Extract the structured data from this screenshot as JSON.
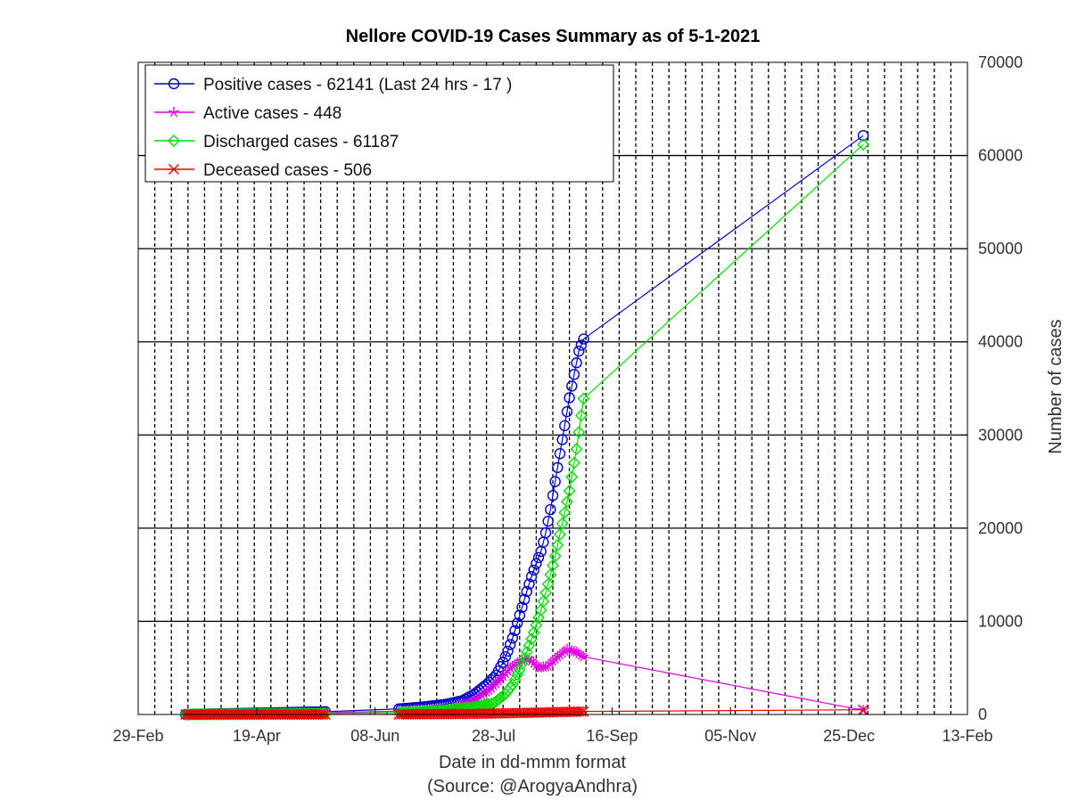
{
  "chart_data": {
    "type": "line",
    "title": "Nellore COVID-19 Cases Summary as of 5-1-2021",
    "xlabel": "Date in dd-mmm format",
    "xlabel2": "(Source: @ArogyaAndhra)",
    "ylabel": "Number of cases",
    "x_ticks": [
      "29-Feb",
      "19-Apr",
      "08-Jun",
      "28-Jul",
      "16-Sep",
      "05-Nov",
      "25-Dec",
      "13-Feb"
    ],
    "y_ticks": [
      "0",
      "10000",
      "20000",
      "30000",
      "40000",
      "50000",
      "60000",
      "70000"
    ],
    "xlim": [
      "2020-02-29",
      "2021-02-13"
    ],
    "ylim": [
      0,
      70000
    ],
    "grid": "on",
    "legend_position": "top-left",
    "series": [
      {
        "name": "Positive cases - 62141 (Last 24 hrs - 17 )",
        "color": "#0000cc",
        "marker": "circle",
        "points": [
          [
            "2020-03-20",
            0
          ],
          [
            "2020-05-18",
            300
          ],
          [
            "2020-06-18",
            600
          ],
          [
            "2020-06-28",
            800
          ],
          [
            "2020-07-08",
            1100
          ],
          [
            "2020-07-15",
            1500
          ],
          [
            "2020-07-20",
            2200
          ],
          [
            "2020-07-25",
            3200
          ],
          [
            "2020-07-29",
            4200
          ],
          [
            "2020-08-01",
            5600
          ],
          [
            "2020-08-03",
            6800
          ],
          [
            "2020-08-05",
            8200
          ],
          [
            "2020-08-07",
            9800
          ],
          [
            "2020-08-09",
            11500
          ],
          [
            "2020-08-11",
            13200
          ],
          [
            "2020-08-13",
            14800
          ],
          [
            "2020-08-15",
            16200
          ],
          [
            "2020-08-17",
            17500
          ],
          [
            "2020-08-19",
            19500
          ],
          [
            "2020-08-21",
            22000
          ],
          [
            "2020-08-23",
            25000
          ],
          [
            "2020-08-25",
            28000
          ],
          [
            "2020-08-27",
            31000
          ],
          [
            "2020-08-29",
            34000
          ],
          [
            "2020-08-31",
            36500
          ],
          [
            "2020-09-02",
            39000
          ],
          [
            "2020-09-04",
            40300
          ],
          [
            "2020-12-31",
            62141
          ]
        ]
      },
      {
        "name": "Active cases - 448",
        "color": "#e000e0",
        "marker": "star",
        "points": [
          [
            "2020-03-20",
            0
          ],
          [
            "2020-05-18",
            200
          ],
          [
            "2020-06-18",
            350
          ],
          [
            "2020-06-28",
            450
          ],
          [
            "2020-07-10",
            600
          ],
          [
            "2020-07-20",
            1500
          ],
          [
            "2020-07-26",
            2600
          ],
          [
            "2020-07-31",
            3800
          ],
          [
            "2020-08-04",
            5000
          ],
          [
            "2020-08-08",
            5700
          ],
          [
            "2020-08-12",
            6000
          ],
          [
            "2020-08-16",
            5000
          ],
          [
            "2020-08-20",
            5200
          ],
          [
            "2020-08-24",
            6200
          ],
          [
            "2020-08-28",
            7000
          ],
          [
            "2020-09-01",
            6700
          ],
          [
            "2020-09-04",
            6200
          ],
          [
            "2020-12-31",
            448
          ]
        ]
      },
      {
        "name": "Discharged cases - 61187",
        "color": "#00dd00",
        "marker": "diamond",
        "points": [
          [
            "2020-03-20",
            0
          ],
          [
            "2020-05-18",
            100
          ],
          [
            "2020-06-18",
            200
          ],
          [
            "2020-06-28",
            300
          ],
          [
            "2020-07-10",
            500
          ],
          [
            "2020-07-20",
            800
          ],
          [
            "2020-07-28",
            1200
          ],
          [
            "2020-08-02",
            2200
          ],
          [
            "2020-08-05",
            3200
          ],
          [
            "2020-08-08",
            4800
          ],
          [
            "2020-08-11",
            6700
          ],
          [
            "2020-08-14",
            8800
          ],
          [
            "2020-08-17",
            11200
          ],
          [
            "2020-08-20",
            14000
          ],
          [
            "2020-08-23",
            17000
          ],
          [
            "2020-08-26",
            20500
          ],
          [
            "2020-08-29",
            24000
          ],
          [
            "2020-09-01",
            28500
          ],
          [
            "2020-09-04",
            33900
          ],
          [
            "2020-12-31",
            61187
          ]
        ]
      },
      {
        "name": "Deceased cases - 506",
        "color": "#ee0000",
        "marker": "x",
        "points": [
          [
            "2020-03-20",
            0
          ],
          [
            "2020-05-18",
            5
          ],
          [
            "2020-06-18",
            10
          ],
          [
            "2020-07-20",
            60
          ],
          [
            "2020-08-15",
            200
          ],
          [
            "2020-09-04",
            320
          ],
          [
            "2020-12-31",
            506
          ]
        ]
      }
    ]
  }
}
